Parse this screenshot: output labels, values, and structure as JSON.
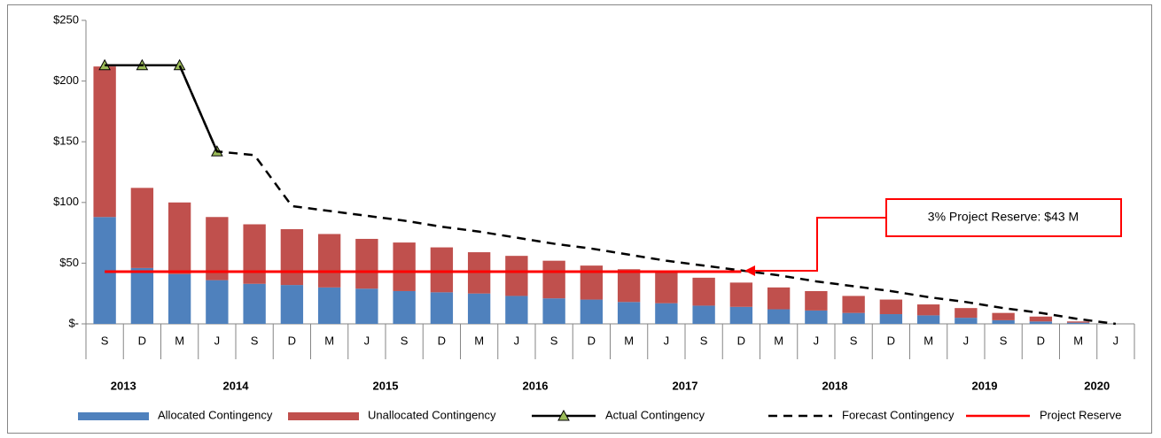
{
  "chart_data": {
    "type": "bar",
    "categories": [
      "S",
      "D",
      "M",
      "J",
      "S",
      "D",
      "M",
      "J",
      "S",
      "D",
      "M",
      "J",
      "S",
      "D",
      "M",
      "J",
      "S",
      "D",
      "M",
      "J",
      "S",
      "D",
      "M",
      "J",
      "S",
      "D",
      "M",
      "J"
    ],
    "years": [
      "2013",
      "2013",
      "2014",
      "2014",
      "2014",
      "2014",
      "2015",
      "2015",
      "2015",
      "2015",
      "2016",
      "2016",
      "2016",
      "2016",
      "2017",
      "2017",
      "2017",
      "2017",
      "2018",
      "2018",
      "2018",
      "2018",
      "2019",
      "2019",
      "2019",
      "2019",
      "2020",
      "2020"
    ],
    "series": [
      {
        "name": "Allocated Contingency",
        "type": "bar",
        "color": "#4f81bd",
        "values": [
          88,
          46,
          41,
          36,
          33,
          32,
          30,
          29,
          27,
          26,
          25,
          23,
          21,
          20,
          18,
          17,
          15,
          14,
          12,
          11,
          9,
          8,
          7,
          5,
          3,
          2,
          1,
          0
        ]
      },
      {
        "name": "Unallocated Contingency",
        "type": "bar",
        "color": "#c0504d",
        "values": [
          124,
          66,
          59,
          52,
          49,
          46,
          44,
          41,
          40,
          37,
          34,
          33,
          31,
          28,
          27,
          26,
          23,
          20,
          18,
          16,
          14,
          12,
          9,
          8,
          6,
          4,
          1,
          0
        ]
      },
      {
        "name": "Actual Contingency",
        "type": "line",
        "color": "#000000",
        "marker": "triangle",
        "marker_color": "#9bbb59",
        "values": [
          213,
          213,
          213,
          142,
          null,
          null,
          null,
          null,
          null,
          null,
          null,
          null,
          null,
          null,
          null,
          null,
          null,
          null,
          null,
          null,
          null,
          null,
          null,
          null,
          null,
          null,
          null,
          null
        ]
      },
      {
        "name": "Forecast Contingency",
        "type": "line",
        "color": "#000000",
        "style": "dashed",
        "values": [
          213,
          213,
          213,
          142,
          139,
          97,
          93,
          89,
          85,
          80,
          76,
          71,
          66,
          62,
          57,
          52,
          48,
          44,
          40,
          35,
          31,
          27,
          22,
          18,
          13,
          9,
          4,
          0
        ]
      },
      {
        "name": "Project Reserve",
        "type": "line",
        "color": "#ff0000",
        "values": [
          43,
          43,
          43,
          43,
          43,
          43,
          43,
          43,
          43,
          43,
          43,
          43,
          43,
          43,
          43,
          43,
          43,
          43,
          null,
          null,
          null,
          null,
          null,
          null,
          null,
          null,
          null,
          null
        ]
      }
    ],
    "annotation": "3% Project Reserve: $43 M",
    "ylim": [
      0,
      250
    ],
    "yticks": [
      {
        "value": 0,
        "label": "$-"
      },
      {
        "value": 50,
        "label": "$50"
      },
      {
        "value": 100,
        "label": "$100"
      },
      {
        "value": 150,
        "label": "$150"
      },
      {
        "value": 200,
        "label": "$200"
      },
      {
        "value": 250,
        "label": "$250"
      }
    ],
    "grid": false,
    "legend": "bottom"
  }
}
